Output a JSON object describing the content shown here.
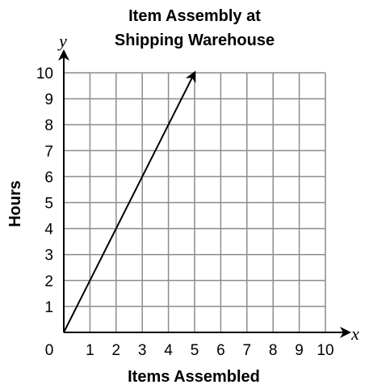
{
  "chart_data": {
    "type": "line",
    "title_line1": "Item Assembly at",
    "title_line2": "Shipping Warehouse",
    "xlabel": "Items Assembled",
    "ylabel": "Hours",
    "x_var": "x",
    "y_var": "y",
    "xlim": [
      0,
      10
    ],
    "ylim": [
      0,
      10
    ],
    "x_ticks": [
      "0",
      "1",
      "2",
      "3",
      "4",
      "5",
      "6",
      "7",
      "8",
      "9",
      "10"
    ],
    "y_ticks": [
      "1",
      "2",
      "3",
      "4",
      "5",
      "6",
      "7",
      "8",
      "9",
      "10"
    ],
    "grid": true,
    "series": [
      {
        "points": [
          [
            0,
            0
          ],
          [
            5,
            10
          ]
        ],
        "arrow_end": true,
        "color": "#000000"
      }
    ]
  }
}
